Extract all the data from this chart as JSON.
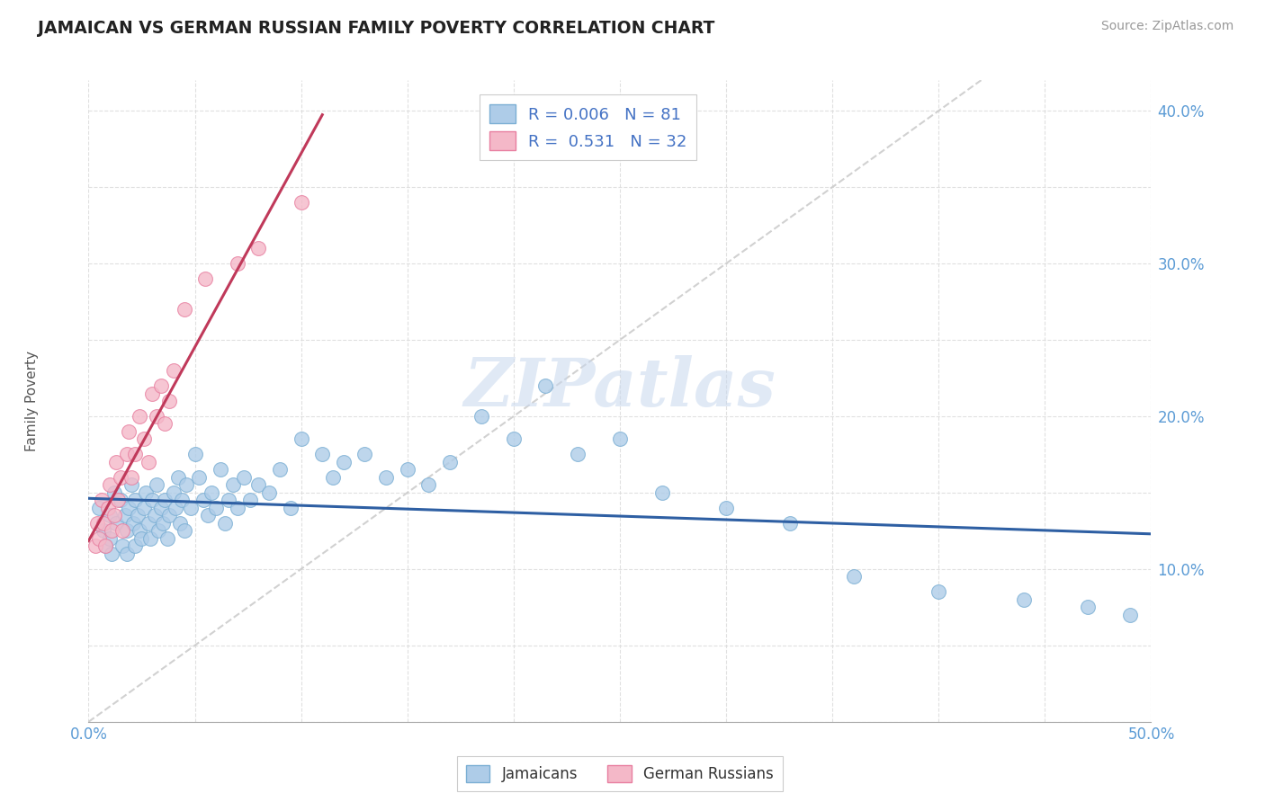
{
  "title": "JAMAICAN VS GERMAN RUSSIAN FAMILY POVERTY CORRELATION CHART",
  "source": "Source: ZipAtlas.com",
  "ylabel": "Family Poverty",
  "xlim": [
    0.0,
    0.5
  ],
  "ylim": [
    0.0,
    0.42
  ],
  "xticks": [
    0.0,
    0.05,
    0.1,
    0.15,
    0.2,
    0.25,
    0.3,
    0.35,
    0.4,
    0.45,
    0.5
  ],
  "yticks": [
    0.0,
    0.05,
    0.1,
    0.15,
    0.2,
    0.25,
    0.3,
    0.35,
    0.4
  ],
  "xtick_labels": [
    "0.0%",
    "",
    "",
    "",
    "",
    "",
    "",
    "",
    "",
    "",
    "50.0%"
  ],
  "ytick_labels": [
    "",
    "",
    "10.0%",
    "",
    "20.0%",
    "",
    "30.0%",
    "",
    "40.0%"
  ],
  "legend_R1": "0.006",
  "legend_N1": "81",
  "legend_R2": "0.531",
  "legend_N2": "32",
  "jamaicans_color": "#aecce8",
  "german_russians_color": "#f4b8c8",
  "jamaicans_edge": "#7bafd4",
  "german_russians_edge": "#e87fa0",
  "trendline1_color": "#2e5fa3",
  "trendline2_color": "#c0395a",
  "diagonal_color": "#cccccc",
  "watermark": "ZIPatlas",
  "background_color": "#ffffff",
  "jamaicans_x": [
    0.005,
    0.007,
    0.008,
    0.01,
    0.01,
    0.011,
    0.012,
    0.013,
    0.015,
    0.016,
    0.017,
    0.018,
    0.018,
    0.019,
    0.02,
    0.021,
    0.022,
    0.022,
    0.023,
    0.024,
    0.025,
    0.026,
    0.027,
    0.028,
    0.029,
    0.03,
    0.031,
    0.032,
    0.033,
    0.034,
    0.035,
    0.036,
    0.037,
    0.038,
    0.04,
    0.041,
    0.042,
    0.043,
    0.044,
    0.045,
    0.046,
    0.048,
    0.05,
    0.052,
    0.054,
    0.056,
    0.058,
    0.06,
    0.062,
    0.064,
    0.066,
    0.068,
    0.07,
    0.073,
    0.076,
    0.08,
    0.085,
    0.09,
    0.095,
    0.1,
    0.11,
    0.115,
    0.12,
    0.13,
    0.14,
    0.15,
    0.16,
    0.17,
    0.185,
    0.2,
    0.215,
    0.23,
    0.25,
    0.27,
    0.3,
    0.33,
    0.36,
    0.4,
    0.44,
    0.47,
    0.49
  ],
  "jamaicans_y": [
    0.14,
    0.125,
    0.115,
    0.135,
    0.12,
    0.11,
    0.15,
    0.13,
    0.145,
    0.115,
    0.135,
    0.125,
    0.11,
    0.14,
    0.155,
    0.13,
    0.145,
    0.115,
    0.135,
    0.125,
    0.12,
    0.14,
    0.15,
    0.13,
    0.12,
    0.145,
    0.135,
    0.155,
    0.125,
    0.14,
    0.13,
    0.145,
    0.12,
    0.135,
    0.15,
    0.14,
    0.16,
    0.13,
    0.145,
    0.125,
    0.155,
    0.14,
    0.175,
    0.16,
    0.145,
    0.135,
    0.15,
    0.14,
    0.165,
    0.13,
    0.145,
    0.155,
    0.14,
    0.16,
    0.145,
    0.155,
    0.15,
    0.165,
    0.14,
    0.185,
    0.175,
    0.16,
    0.17,
    0.175,
    0.16,
    0.165,
    0.155,
    0.17,
    0.2,
    0.185,
    0.22,
    0.175,
    0.185,
    0.15,
    0.14,
    0.13,
    0.095,
    0.085,
    0.08,
    0.075,
    0.07
  ],
  "german_russians_x": [
    0.003,
    0.004,
    0.005,
    0.006,
    0.007,
    0.008,
    0.009,
    0.01,
    0.011,
    0.012,
    0.013,
    0.014,
    0.015,
    0.016,
    0.018,
    0.019,
    0.02,
    0.022,
    0.024,
    0.026,
    0.028,
    0.03,
    0.032,
    0.034,
    0.036,
    0.038,
    0.04,
    0.045,
    0.055,
    0.07,
    0.08,
    0.1
  ],
  "german_russians_y": [
    0.115,
    0.13,
    0.12,
    0.145,
    0.13,
    0.115,
    0.14,
    0.155,
    0.125,
    0.135,
    0.17,
    0.145,
    0.16,
    0.125,
    0.175,
    0.19,
    0.16,
    0.175,
    0.2,
    0.185,
    0.17,
    0.215,
    0.2,
    0.22,
    0.195,
    0.21,
    0.23,
    0.27,
    0.29,
    0.3,
    0.31,
    0.34
  ]
}
